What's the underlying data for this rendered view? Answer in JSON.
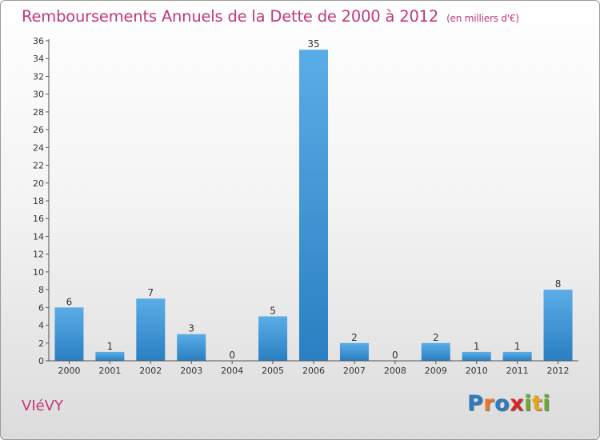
{
  "title": "Remboursements Annuels de la Dette de 2000 à 2012",
  "subtitle": "(en milliers d'€)",
  "commune": "VIéVY",
  "logo": {
    "text": "Proxiti",
    "letters": [
      {
        "ch": "P",
        "color": "#2b7bc0"
      },
      {
        "ch": "r",
        "color": "#e8762b"
      },
      {
        "ch": "o",
        "color": "#2b7bc0"
      },
      {
        "ch": "x",
        "color": "#d9252a"
      },
      {
        "ch": "i",
        "color": "#6aa832"
      },
      {
        "ch": "t",
        "color": "#e8a51c"
      },
      {
        "ch": "i",
        "color": "#6aa832"
      }
    ]
  },
  "colors": {
    "accent": "#c0387a",
    "bar_light": "#5aade6",
    "bar_dark": "#2a7fc2"
  },
  "chart_data": {
    "type": "bar",
    "title": "Remboursements Annuels de la Dette de 2000 à 2012",
    "ylabel": "en milliers d'€",
    "xlabel": "",
    "categories": [
      "2000",
      "2001",
      "2002",
      "2003",
      "2004",
      "2005",
      "2006",
      "2007",
      "2008",
      "2009",
      "2010",
      "2011",
      "2012"
    ],
    "values": [
      6,
      1,
      7,
      3,
      0,
      5,
      35,
      2,
      0,
      2,
      1,
      1,
      8
    ],
    "ylim": [
      0,
      36
    ],
    "yticks": [
      0,
      2,
      4,
      6,
      8,
      10,
      12,
      14,
      16,
      18,
      20,
      22,
      24,
      26,
      28,
      30,
      32,
      34,
      36
    ],
    "grid": false,
    "data_labels": true
  }
}
